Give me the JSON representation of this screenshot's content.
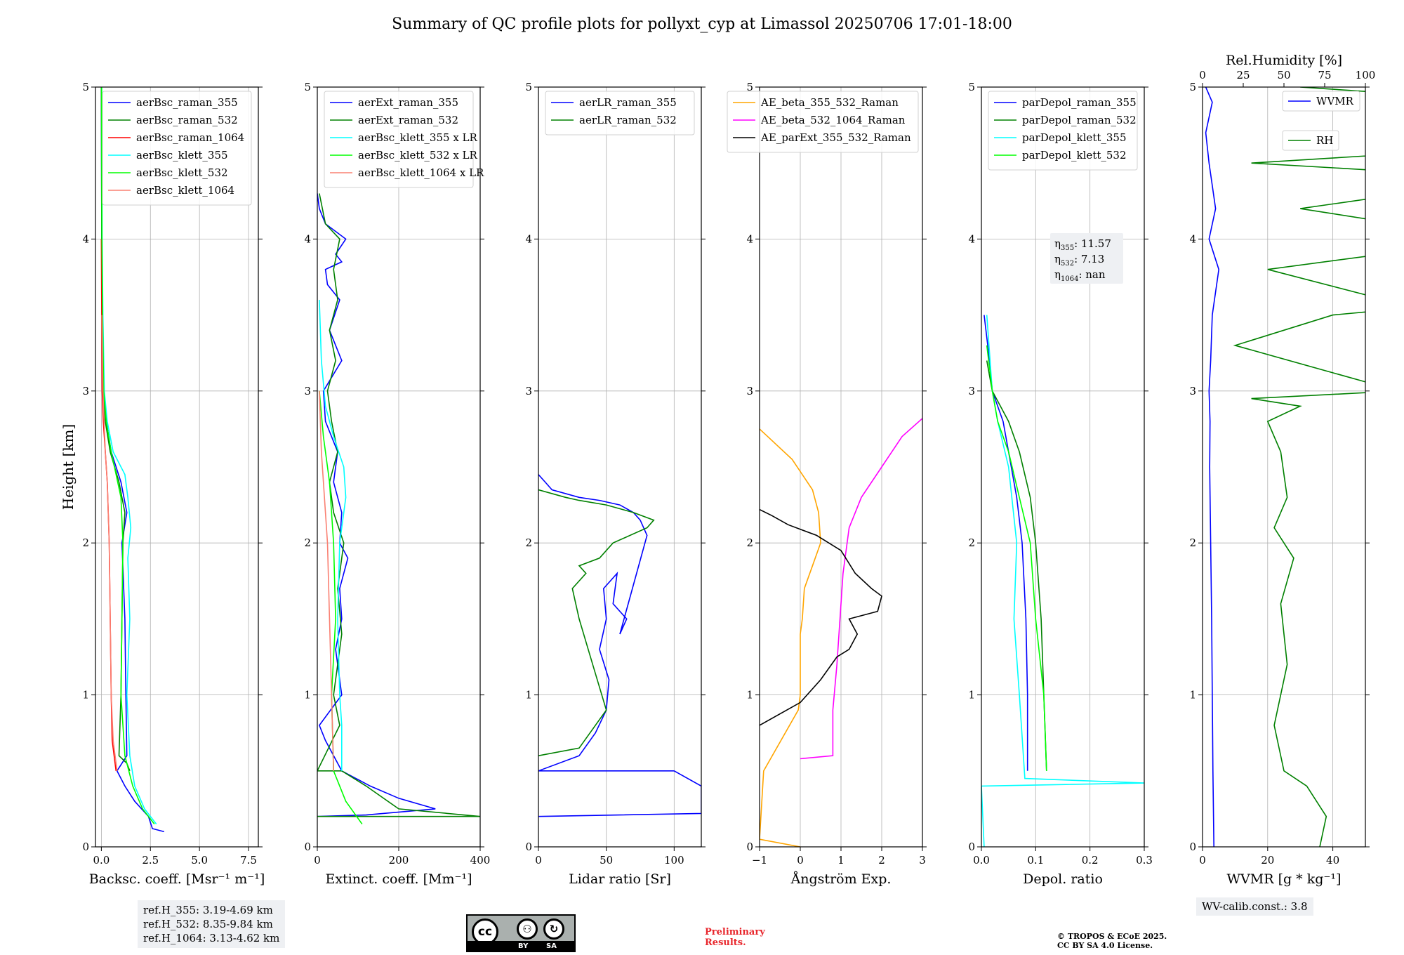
{
  "title": "Summary of QC profile plots for pollyxt_cyp at Limassol 20250706 17:01-18:00",
  "ref_lines": [
    "ref.H_355: 3.19-4.69 km",
    "ref.H_532: 8.35-9.84 km",
    "ref.H_1064: 3.13-4.62 km"
  ],
  "wv_calib": "WV-calib.const.: 3.8",
  "preliminary": [
    "Preliminary",
    "Results."
  ],
  "copyright": [
    "© TROPOS & ECoE 2025.",
    "CC BY SA 4.0 License."
  ],
  "license_logo": {
    "cc": "cc",
    "by": "BY",
    "sa": "SA"
  },
  "ylabel": "Height [km]",
  "colors": {
    "blue": "#0000ff",
    "green": "#008000",
    "red": "#ff0000",
    "cyan": "#00ffff",
    "lime": "#00ff00",
    "salmon": "#fa8072",
    "orange": "#ffa500",
    "magenta": "#ff00ff",
    "black": "#000000"
  },
  "chart_data": [
    {
      "type": "line",
      "xlabel": "Backsc. coeff. [Msr⁻¹ m⁻¹]",
      "xlim": [
        -0.3,
        8.0
      ],
      "ylim": [
        0,
        5
      ],
      "xticks": [
        0,
        2.5,
        5.0,
        7.5
      ],
      "xticklabels": [
        "0.0",
        "2.5",
        "5.0",
        "7.5"
      ],
      "yticks": [
        0,
        1,
        2,
        3,
        4,
        5
      ],
      "grid": true,
      "legend": "top-right",
      "series": [
        {
          "name": "aerBsc_raman_355",
          "color": "blue",
          "x": [
            3.2,
            2.6,
            2.4,
            1.7,
            1.2,
            0.8,
            1.3,
            1.25,
            1.2,
            1.05,
            1.3,
            1.0,
            0.5,
            0.25,
            0.1,
            0.06,
            0.02,
            0.0
          ],
          "y": [
            0.1,
            0.12,
            0.2,
            0.3,
            0.4,
            0.5,
            0.6,
            1.0,
            1.5,
            2.0,
            2.2,
            2.4,
            2.6,
            2.8,
            3.0,
            3.5,
            4.0,
            5.0
          ]
        },
        {
          "name": "aerBsc_raman_532",
          "color": "green",
          "x": [
            1.45,
            1.3,
            0.9,
            1.0,
            1.05,
            1.1,
            1.2,
            0.9,
            0.45,
            0.2,
            0.1,
            0.06,
            0.02,
            0.0
          ],
          "y": [
            0.5,
            0.55,
            0.6,
            1.0,
            1.5,
            2.0,
            2.2,
            2.4,
            2.6,
            2.8,
            3.0,
            3.5,
            4.0,
            5.0
          ]
        },
        {
          "name": "aerBsc_raman_1064",
          "color": "red",
          "x": [
            0.75,
            0.55,
            0.5,
            0.45,
            0.4,
            0.35,
            0.3,
            0.2,
            0.1,
            0.04,
            0.02,
            0.0
          ],
          "y": [
            0.5,
            0.7,
            1.0,
            1.5,
            2.0,
            2.2,
            2.4,
            2.6,
            2.8,
            3.0,
            3.5,
            4.0
          ]
        },
        {
          "name": "aerBsc_klett_355",
          "color": "cyan",
          "x": [
            2.8,
            2.2,
            1.7,
            1.45,
            1.3,
            1.45,
            1.35,
            1.5,
            1.35,
            1.2,
            0.6,
            0.3,
            0.15,
            0.08,
            0.04,
            0.02
          ],
          "y": [
            0.15,
            0.25,
            0.4,
            0.6,
            1.0,
            1.5,
            1.9,
            2.1,
            2.3,
            2.45,
            2.6,
            2.8,
            3.0,
            3.5,
            4.0,
            5.0
          ]
        },
        {
          "name": "aerBsc_klett_532",
          "color": "lime",
          "x": [
            2.7,
            2.1,
            1.6,
            1.2,
            1.0,
            1.05,
            1.1,
            1.0,
            0.5,
            0.25,
            0.12,
            0.06,
            0.03,
            0.01
          ],
          "y": [
            0.15,
            0.25,
            0.4,
            0.6,
            1.0,
            1.5,
            2.0,
            2.3,
            2.6,
            2.8,
            3.0,
            3.5,
            4.0,
            5.0
          ]
        },
        {
          "name": "aerBsc_klett_1064",
          "color": "salmon",
          "x": [
            0.8,
            0.6,
            0.5,
            0.45,
            0.4,
            0.3,
            0.2,
            0.08,
            0.03
          ],
          "y": [
            0.5,
            0.7,
            1.0,
            1.5,
            2.0,
            2.4,
            2.6,
            3.0,
            3.5
          ]
        }
      ]
    },
    {
      "type": "line",
      "xlabel": "Extinct. coeff. [Mm⁻¹]",
      "xlim": [
        0,
        400
      ],
      "ylim": [
        0,
        5
      ],
      "xticks": [
        0,
        200,
        400
      ],
      "xticklabels": [
        "0",
        "200",
        "400"
      ],
      "yticks": [
        0,
        1,
        2,
        3,
        4,
        5
      ],
      "grid": true,
      "legend": "top-right",
      "series": [
        {
          "name": "aerExt_raman_355",
          "color": "blue",
          "x": [
            0,
            120,
            290,
            200,
            130,
            60,
            20,
            5,
            60,
            45,
            60,
            55,
            75,
            55,
            60,
            40,
            50,
            20,
            15,
            60,
            30,
            55,
            25,
            20,
            60,
            45,
            70,
            20,
            5,
            0
          ],
          "y": [
            0.2,
            0.21,
            0.25,
            0.32,
            0.4,
            0.5,
            0.7,
            0.8,
            1.0,
            1.3,
            1.5,
            1.7,
            1.9,
            2.0,
            2.2,
            2.4,
            2.6,
            2.8,
            3.0,
            3.2,
            3.4,
            3.6,
            3.7,
            3.8,
            3.85,
            3.9,
            4.0,
            4.1,
            4.2,
            4.3
          ]
        },
        {
          "name": "aerExt_raman_532",
          "color": "green",
          "x": [
            0,
            400,
            200,
            120,
            60,
            0,
            55,
            40,
            60,
            50,
            65,
            40,
            30,
            50,
            35,
            25,
            45,
            30,
            50,
            40,
            55,
            20,
            5
          ],
          "y": [
            0.2,
            0.2,
            0.25,
            0.4,
            0.5,
            0.5,
            0.8,
            1.0,
            1.4,
            1.7,
            2.0,
            2.2,
            2.4,
            2.6,
            2.8,
            3.0,
            3.2,
            3.4,
            3.6,
            3.8,
            4.0,
            4.1,
            4.3
          ]
        },
        {
          "name": "aerBsc_klett_355 x LR",
          "color": "cyan",
          "x": [
            60,
            60,
            55,
            50,
            55,
            70,
            65,
            40,
            20,
            10,
            5
          ],
          "y": [
            0.5,
            0.8,
            1.0,
            1.5,
            2.0,
            2.3,
            2.5,
            2.7,
            2.9,
            3.2,
            3.6
          ]
        },
        {
          "name": "aerBsc_klett_532 x LR",
          "color": "lime",
          "x": [
            110,
            70,
            40,
            35,
            45,
            40,
            30,
            15,
            5
          ],
          "y": [
            0.15,
            0.3,
            0.5,
            1.0,
            1.5,
            2.0,
            2.4,
            2.7,
            3.0
          ]
        },
        {
          "name": "aerBsc_klett_1064 x LR",
          "color": "salmon",
          "x": [
            40,
            35,
            30,
            25,
            20,
            15,
            10,
            5
          ],
          "y": [
            0.5,
            1.0,
            1.5,
            2.0,
            2.2,
            2.4,
            2.6,
            3.0
          ]
        }
      ]
    },
    {
      "type": "line",
      "xlabel": "Lidar ratio [Sr]",
      "xlim": [
        0,
        120
      ],
      "ylim": [
        0,
        5
      ],
      "xticks": [
        0,
        50,
        100
      ],
      "xticklabels": [
        "0",
        "50",
        "100"
      ],
      "yticks": [
        0,
        1,
        2,
        3,
        4,
        5
      ],
      "grid": true,
      "legend": "top-right",
      "series": [
        {
          "name": "aerLR_raman_355",
          "color": "blue",
          "x": [
            0,
            120,
            120,
            100,
            0,
            30,
            42,
            50,
            52,
            45,
            50,
            48,
            58,
            55,
            65,
            60,
            80,
            75,
            70,
            60,
            45,
            30,
            10,
            5,
            0
          ],
          "y": [
            0.2,
            0.22,
            0.4,
            0.5,
            0.5,
            0.6,
            0.75,
            0.9,
            1.1,
            1.3,
            1.5,
            1.7,
            1.8,
            1.6,
            1.5,
            1.4,
            2.05,
            2.15,
            2.2,
            2.25,
            2.28,
            2.3,
            2.35,
            2.4,
            2.45
          ]
        },
        {
          "name": "aerLR_raman_532",
          "color": "green",
          "x": [
            0,
            30,
            50,
            40,
            30,
            25,
            35,
            30,
            45,
            55,
            80,
            85,
            70,
            50,
            30,
            20,
            0
          ],
          "y": [
            0.6,
            0.65,
            0.9,
            1.2,
            1.5,
            1.7,
            1.8,
            1.85,
            1.9,
            2.0,
            2.1,
            2.15,
            2.2,
            2.25,
            2.28,
            2.3,
            2.35
          ]
        }
      ]
    },
    {
      "type": "line",
      "xlabel": "Ångström Exp.",
      "xlim": [
        -1,
        3
      ],
      "ylim": [
        0,
        5
      ],
      "xticks": [
        -1,
        0,
        1,
        2,
        3
      ],
      "xticklabels": [
        "−1",
        "0",
        "1",
        "2",
        "3"
      ],
      "yticks": [
        0,
        1,
        2,
        3,
        4,
        5
      ],
      "grid": true,
      "legend": "top-right",
      "series": [
        {
          "name": "AE_beta_355_532_Raman",
          "color": "orange",
          "x": [
            0.0,
            -1.0,
            -0.9,
            -0.05,
            0.0,
            0.0,
            0.05,
            0.1,
            0.3,
            0.5,
            0.45,
            0.3,
            0.05,
            -0.2,
            -0.8,
            -1.0
          ],
          "y": [
            0.0,
            0.05,
            0.5,
            0.9,
            1.0,
            1.4,
            1.5,
            1.7,
            1.85,
            2.0,
            2.2,
            2.35,
            2.45,
            2.55,
            2.7,
            2.75
          ]
        },
        {
          "name": "AE_beta_532_1064_Raman",
          "color": "magenta",
          "x": [
            0,
            0.8,
            0.8,
            0.9,
            0.95,
            1.05,
            1.2,
            1.5,
            2.0,
            2.5,
            3.0
          ],
          "y": [
            0.58,
            0.6,
            0.9,
            1.2,
            1.4,
            1.8,
            2.1,
            2.3,
            2.5,
            2.7,
            2.82
          ]
        },
        {
          "name": "AE_parExt_355_532_Raman",
          "color": "black",
          "x": [
            -1,
            0,
            0.5,
            0.9,
            1.2,
            1.4,
            1.2,
            1.9,
            2.0,
            1.75,
            1.35,
            1.0,
            0.4,
            -0.3,
            -0.7,
            -1.0
          ],
          "y": [
            0.8,
            0.95,
            1.1,
            1.25,
            1.3,
            1.4,
            1.5,
            1.55,
            1.65,
            1.7,
            1.8,
            1.95,
            2.05,
            2.12,
            2.18,
            2.22
          ]
        }
      ]
    },
    {
      "type": "line",
      "xlabel": "Depol. ratio",
      "xlim": [
        0,
        0.3
      ],
      "ylim": [
        0,
        5
      ],
      "xticks": [
        0,
        0.1,
        0.2,
        0.3
      ],
      "xticklabels": [
        "0.0",
        "0.1",
        "0.2",
        "0.3"
      ],
      "yticks": [
        0,
        1,
        2,
        3,
        4,
        5
      ],
      "grid": true,
      "legend": "top-right",
      "series": [
        {
          "name": "parDepol_raman_355",
          "color": "blue",
          "x": [
            0.085,
            0.085,
            0.082,
            0.075,
            0.065,
            0.05,
            0.04,
            0.03,
            0.02,
            0.015,
            0.005
          ],
          "y": [
            0.5,
            1.0,
            1.5,
            2.0,
            2.3,
            2.6,
            2.8,
            2.9,
            3.0,
            3.2,
            3.5
          ]
        },
        {
          "name": "parDepol_raman_532",
          "color": "green",
          "x": [
            0.12,
            0.115,
            0.11,
            0.1,
            0.09,
            0.07,
            0.05,
            0.035,
            0.02,
            0.01
          ],
          "y": [
            0.5,
            1.0,
            1.5,
            2.0,
            2.3,
            2.6,
            2.8,
            2.9,
            3.0,
            3.2
          ]
        },
        {
          "name": "parDepol_klett_355",
          "color": "cyan",
          "x": [
            0.005,
            0.0,
            0.3,
            0.08,
            0.07,
            0.06,
            0.065,
            0.05,
            0.03,
            0.02,
            0.01
          ],
          "y": [
            0.0,
            0.4,
            0.42,
            0.45,
            1.0,
            1.5,
            2.0,
            2.5,
            2.8,
            3.0,
            3.5
          ]
        },
        {
          "name": "parDepol_klett_532",
          "color": "lime",
          "x": [
            0.12,
            0.115,
            0.1,
            0.09,
            0.07,
            0.05,
            0.03,
            0.02,
            0.01
          ],
          "y": [
            0.5,
            1.0,
            1.5,
            2.0,
            2.3,
            2.6,
            2.8,
            3.0,
            3.3
          ]
        }
      ],
      "annotation": [
        {
          "sym": "η",
          "sub": "355",
          "val": ": 11.57"
        },
        {
          "sym": "η",
          "sub": "532",
          "val": ": 7.13"
        },
        {
          "sym": "η",
          "sub": "1064",
          "val": ": nan"
        }
      ]
    },
    {
      "type": "line",
      "xlabel": "WVMR [g * kg⁻¹]",
      "x2label": "Rel.Humidity [%]",
      "xlim": [
        0,
        50
      ],
      "ylim": [
        0,
        5
      ],
      "xticks": [
        0,
        20,
        40
      ],
      "xticklabels": [
        "0",
        "20",
        "40"
      ],
      "x2lim": [
        0,
        100
      ],
      "x2ticks": [
        0,
        25,
        50,
        75,
        100
      ],
      "x2ticklabels": [
        "0",
        "25",
        "50",
        "75",
        "100"
      ],
      "yticks": [
        0,
        1,
        2,
        3,
        4,
        5
      ],
      "grid": true,
      "legend": "top-right",
      "series": [
        {
          "name": "WVMR",
          "color": "blue",
          "x": [
            3.5,
            3.2,
            3.0,
            2.8,
            2.5,
            2.2,
            2.3,
            2.0,
            2.5,
            3.0,
            5.0,
            2.0,
            4.0,
            2.0,
            1.0,
            3.0,
            1.0
          ],
          "y": [
            0.0,
            0.5,
            1.0,
            1.5,
            2.0,
            2.5,
            2.8,
            3.0,
            3.2,
            3.5,
            3.8,
            4.0,
            4.2,
            4.5,
            4.7,
            4.9,
            5.0
          ]
        },
        {
          "name": "RH",
          "color": "green",
          "x": [
            36,
            38,
            32,
            25,
            22,
            26,
            24,
            28,
            22,
            26,
            24,
            20,
            30,
            15,
            60,
            10,
            40,
            65,
            20,
            90,
            30,
            95,
            15,
            90,
            50,
            100,
            30
          ],
          "y": [
            0.0,
            0.2,
            0.4,
            0.5,
            0.8,
            1.2,
            1.6,
            1.9,
            2.1,
            2.3,
            2.6,
            2.8,
            2.9,
            2.95,
            3.0,
            3.3,
            3.5,
            3.55,
            3.8,
            4.0,
            4.2,
            4.4,
            4.5,
            4.6,
            4.7,
            4.9,
            5.0
          ]
        }
      ]
    }
  ]
}
